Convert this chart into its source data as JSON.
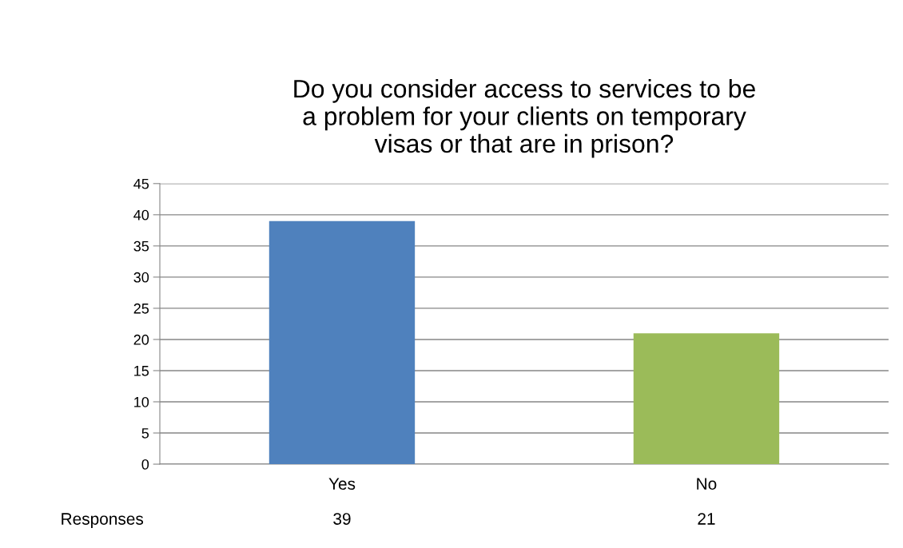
{
  "chart_data": {
    "type": "bar",
    "title": "Do you consider access to services to be\na problem for your clients on temporary\nvisas or that are in prison?",
    "categories": [
      "Yes",
      "No"
    ],
    "series": [
      {
        "name": "Responses",
        "values": [
          39,
          21
        ],
        "colors": [
          "#4f81bd",
          "#9bbb59"
        ]
      }
    ],
    "ylim": [
      0,
      45
    ],
    "yticks": [
      0,
      5,
      10,
      15,
      20,
      25,
      30,
      35,
      40,
      45
    ],
    "grid": "y",
    "data_labels": true,
    "legend": false
  }
}
